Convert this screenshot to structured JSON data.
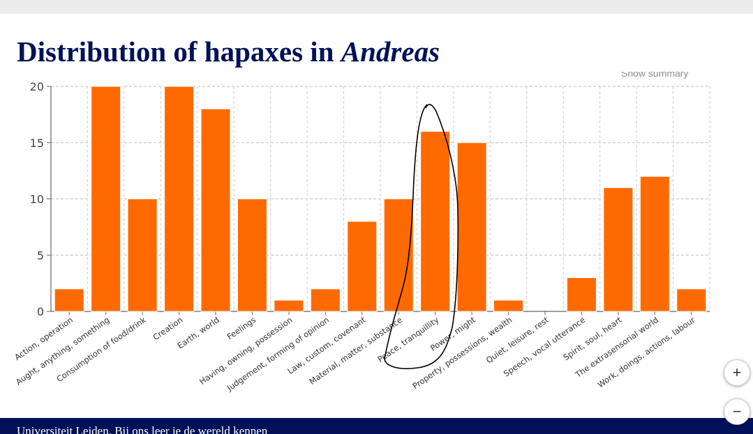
{
  "slide": {
    "title_main": "Distribution of hapaxes in",
    "title_italic": "Andreas",
    "summary_snip": "Show summary",
    "footer_text": "Universiteit Leiden. Bij ons leer je de wereld kennen"
  },
  "controls": {
    "zoom_in": "+",
    "zoom_out": "−"
  },
  "colors": {
    "bar": "#ff6a00",
    "title": "#001158",
    "footer": "#001158",
    "annotation": "#000000"
  },
  "chart_data": {
    "type": "bar",
    "title": "",
    "xlabel": "",
    "ylabel": "",
    "ylim": [
      0,
      20
    ],
    "yticks": [
      0,
      5,
      10,
      15,
      20
    ],
    "grid": true,
    "categories": [
      "Action, operation",
      "Aught, anything, something",
      "Consumption of food/drink",
      "Creation",
      "Earth, world",
      "Feelings",
      "Having, owning, possession",
      "Judgement, forming of opinion",
      "Law, custom, covenant",
      "Material, matter, substance",
      "Peace, tranquillity",
      "Power, might",
      "Property, possessions, wealth",
      "Quiet, leisure, rest",
      "Speech, vocal utterance",
      "Spirit, soul, heart",
      "The extrasensorial world",
      "Work, doings, actions, labour"
    ],
    "values": [
      2,
      20,
      10,
      20,
      18,
      10,
      1,
      2,
      8,
      10,
      16,
      15,
      1,
      0,
      3,
      11,
      12,
      2
    ],
    "annotation": "hand-drawn loop around Peace, tranquillity"
  }
}
